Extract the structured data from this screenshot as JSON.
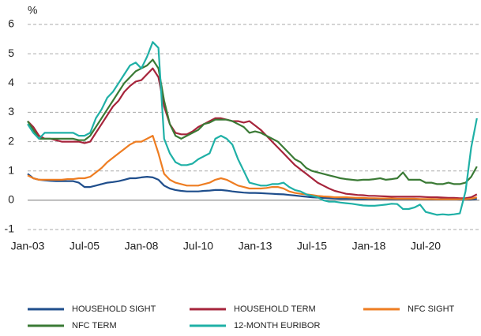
{
  "chart_data": {
    "type": "line",
    "y_label": "%",
    "categories": [
      "Jan-03",
      null,
      null,
      null,
      null,
      null,
      null,
      null,
      null,
      null,
      "Jul-05",
      null,
      null,
      null,
      null,
      null,
      null,
      null,
      null,
      null,
      "Jan-08",
      null,
      null,
      null,
      null,
      null,
      null,
      null,
      null,
      null,
      "Jul-10",
      null,
      null,
      null,
      null,
      null,
      null,
      null,
      null,
      null,
      "Jan-13",
      null,
      null,
      null,
      null,
      null,
      null,
      null,
      null,
      null,
      "Jul-15",
      null,
      null,
      null,
      null,
      null,
      null,
      null,
      null,
      null,
      "Jan-18",
      null,
      null,
      null,
      null,
      null,
      null,
      null,
      null,
      null,
      "Jul-20",
      null,
      null,
      null,
      null,
      null,
      null,
      null,
      null,
      null
    ],
    "ylim": [
      -1,
      6
    ],
    "yticks": [
      -1,
      0,
      1,
      2,
      3,
      4,
      5,
      6
    ],
    "grid": true,
    "legend": "bottom",
    "series": [
      {
        "name": "HOUSEHOLD SIGHT",
        "color": "#1f4e8c",
        "values": [
          0.9,
          0.75,
          0.7,
          0.68,
          0.66,
          0.65,
          0.65,
          0.65,
          0.65,
          0.6,
          0.45,
          0.45,
          0.5,
          0.55,
          0.6,
          0.62,
          0.65,
          0.7,
          0.75,
          0.75,
          0.78,
          0.8,
          0.78,
          0.7,
          0.5,
          0.4,
          0.35,
          0.32,
          0.3,
          0.3,
          0.3,
          0.32,
          0.33,
          0.35,
          0.35,
          0.33,
          0.3,
          0.28,
          0.26,
          0.25,
          0.25,
          0.24,
          0.23,
          0.22,
          0.21,
          0.2,
          0.18,
          0.16,
          0.14,
          0.12,
          0.1,
          0.09,
          0.08,
          0.07,
          0.06,
          0.05,
          0.05,
          0.05,
          0.04,
          0.04,
          0.04,
          0.04,
          0.04,
          0.04,
          0.04,
          0.03,
          0.03,
          0.03,
          0.03,
          0.03,
          0.03,
          0.03,
          0.03,
          0.03,
          0.03,
          0.03,
          0.02,
          0.02,
          0.02,
          0.05
        ]
      },
      {
        "name": "HOUSEHOLD TERM",
        "color": "#a6243b",
        "values": [
          2.7,
          2.5,
          2.2,
          2.1,
          2.1,
          2.05,
          2.0,
          2.0,
          2.0,
          2.0,
          1.95,
          2.0,
          2.3,
          2.6,
          2.9,
          3.2,
          3.4,
          3.7,
          3.9,
          4.05,
          4.1,
          4.3,
          4.5,
          4.2,
          3.2,
          2.6,
          2.3,
          2.25,
          2.25,
          2.35,
          2.5,
          2.6,
          2.7,
          2.8,
          2.8,
          2.75,
          2.7,
          2.7,
          2.65,
          2.7,
          2.55,
          2.4,
          2.2,
          2.0,
          1.8,
          1.6,
          1.4,
          1.2,
          1.05,
          0.9,
          0.75,
          0.6,
          0.5,
          0.4,
          0.32,
          0.27,
          0.22,
          0.2,
          0.18,
          0.17,
          0.15,
          0.15,
          0.14,
          0.13,
          0.12,
          0.12,
          0.12,
          0.12,
          0.12,
          0.12,
          0.11,
          0.1,
          0.1,
          0.09,
          0.08,
          0.08,
          0.07,
          0.07,
          0.1,
          0.2
        ]
      },
      {
        "name": "NFC SIGHT",
        "color": "#ee7d22",
        "values": [
          0.85,
          0.75,
          0.7,
          0.7,
          0.7,
          0.7,
          0.7,
          0.72,
          0.72,
          0.75,
          0.75,
          0.8,
          0.95,
          1.1,
          1.3,
          1.45,
          1.6,
          1.75,
          1.9,
          2.0,
          2.0,
          2.1,
          2.2,
          1.6,
          0.9,
          0.7,
          0.6,
          0.55,
          0.5,
          0.5,
          0.5,
          0.55,
          0.6,
          0.7,
          0.75,
          0.7,
          0.6,
          0.5,
          0.45,
          0.4,
          0.4,
          0.4,
          0.42,
          0.45,
          0.45,
          0.4,
          0.3,
          0.25,
          0.22,
          0.2,
          0.18,
          0.15,
          0.13,
          0.12,
          0.1,
          0.1,
          0.1,
          0.09,
          0.08,
          0.08,
          0.07,
          0.07,
          0.06,
          0.06,
          0.06,
          0.05,
          0.05,
          0.05,
          0.05,
          0.04,
          0.04,
          0.04,
          0.03,
          0.03,
          0.03,
          0.03,
          0.03,
          0.03,
          0.05,
          0.1
        ]
      },
      {
        "name": "NFC TERM",
        "color": "#3a7a35",
        "values": [
          2.7,
          2.4,
          2.1,
          2.1,
          2.1,
          2.1,
          2.1,
          2.1,
          2.1,
          2.05,
          2.05,
          2.2,
          2.5,
          2.8,
          3.1,
          3.4,
          3.7,
          4.0,
          4.2,
          4.4,
          4.5,
          4.6,
          4.8,
          4.5,
          3.4,
          2.6,
          2.2,
          2.1,
          2.2,
          2.3,
          2.4,
          2.6,
          2.65,
          2.75,
          2.75,
          2.75,
          2.7,
          2.6,
          2.5,
          2.3,
          2.35,
          2.3,
          2.2,
          2.1,
          2.0,
          1.8,
          1.6,
          1.4,
          1.3,
          1.1,
          1.0,
          0.95,
          0.9,
          0.85,
          0.8,
          0.75,
          0.72,
          0.7,
          0.68,
          0.7,
          0.7,
          0.72,
          0.75,
          0.7,
          0.72,
          0.75,
          0.95,
          0.7,
          0.7,
          0.7,
          0.6,
          0.6,
          0.55,
          0.55,
          0.6,
          0.55,
          0.55,
          0.6,
          0.8,
          1.15
        ]
      },
      {
        "name": "12-MONTH EURIBOR",
        "color": "#1fb0a6",
        "values": [
          2.6,
          2.3,
          2.1,
          2.3,
          2.3,
          2.3,
          2.3,
          2.3,
          2.3,
          2.2,
          2.2,
          2.3,
          2.8,
          3.1,
          3.5,
          3.7,
          4.0,
          4.3,
          4.6,
          4.7,
          4.5,
          4.9,
          5.4,
          5.2,
          2.1,
          1.6,
          1.3,
          1.2,
          1.2,
          1.25,
          1.4,
          1.5,
          1.6,
          2.1,
          2.2,
          2.1,
          1.9,
          1.4,
          1.0,
          0.6,
          0.55,
          0.5,
          0.5,
          0.55,
          0.55,
          0.6,
          0.45,
          0.35,
          0.3,
          0.2,
          0.15,
          0.1,
          0.0,
          -0.05,
          -0.05,
          -0.08,
          -0.1,
          -0.12,
          -0.15,
          -0.18,
          -0.19,
          -0.19,
          -0.17,
          -0.15,
          -0.12,
          -0.13,
          -0.3,
          -0.3,
          -0.25,
          -0.15,
          -0.4,
          -0.45,
          -0.5,
          -0.48,
          -0.5,
          -0.48,
          -0.45,
          0.3,
          1.8,
          2.8
        ]
      }
    ]
  }
}
